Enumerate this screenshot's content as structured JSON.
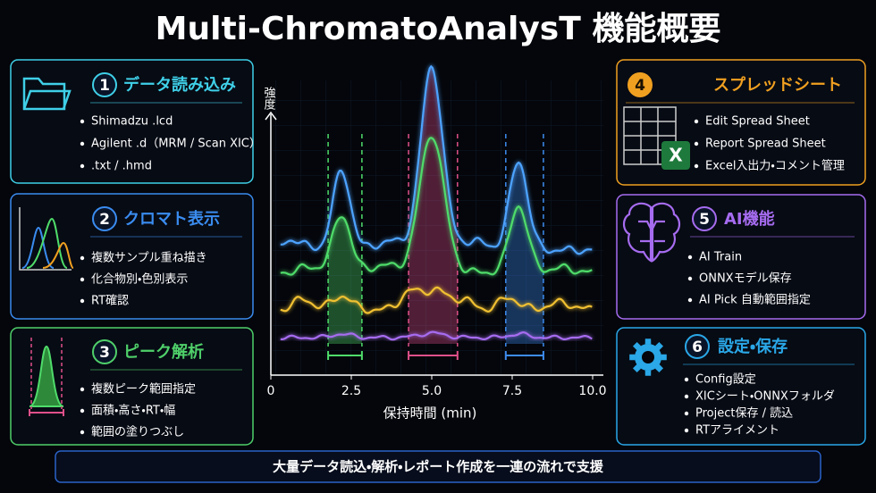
{
  "title": "Multi-ChromatoAnalysT 機能概要",
  "panels": [
    {
      "number": 1,
      "title": "データ読み込み",
      "color": "#3fd0e8",
      "items": [
        "Shimadzu .lcd",
        "Agilent .d（MRM / Scan XIC）",
        ".txt / .hmd"
      ]
    },
    {
      "number": 2,
      "title": "クロマト表示",
      "color": "#3a8cf0",
      "items": [
        "複数サンプル重ね描き",
        "化合物別・色別表示",
        "RT確認"
      ]
    },
    {
      "number": 3,
      "title": "ピーク解析",
      "color": "#4fd06a",
      "items": [
        "複数ピーク範囲指定",
        "面積・高さ・RT・幅",
        "範囲の塗りつぶし"
      ]
    },
    {
      "number": 4,
      "title": "スプレッドシート",
      "color": "#f0a020",
      "icon_text": "X",
      "items": [
        "Edit Spread Sheet",
        "Report Spread Sheet",
        "Excel入出力・コメント管理"
      ]
    },
    {
      "number": 5,
      "title": "AI機能",
      "color": "#a66cf0",
      "items": [
        "AI Train",
        "ONNXモデル保存",
        "AI Pick 自動範囲指定"
      ]
    },
    {
      "number": 6,
      "title": "設定・保存",
      "color": "#2aa8e8",
      "items": [
        "Config設定",
        "XICシート・ONNXフォルダ",
        "Project保存 / 読込",
        "RTアライメント"
      ]
    }
  ],
  "chromatogram": {
    "ylabel": "強度",
    "xlabel": "保持時間 (min)",
    "xlim": [
      0,
      10
    ],
    "xticks": [
      0,
      {
        "value": 2.5,
        "label": "2.5"
      },
      {
        "value": 5,
        "label": "5.0"
      },
      {
        "value": 7.5,
        "label": "7.5"
      },
      {
        "value": 10,
        "label": "10.0"
      }
    ]
  },
  "footer": "大量データ読込・解析・レポート作成を一連の流れで支援"
}
